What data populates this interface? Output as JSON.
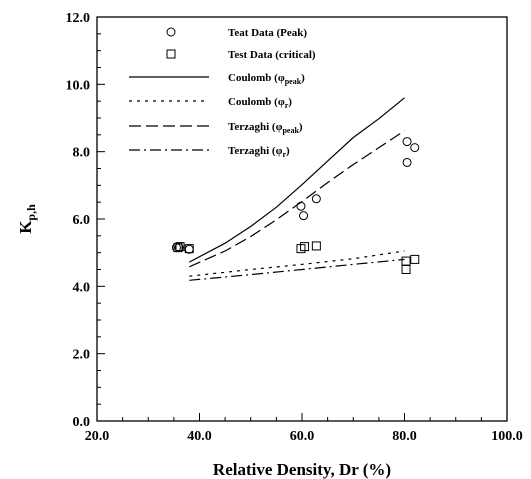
{
  "chart_data": {
    "type": "scatter",
    "xlabel": "Relative Density, Dr (%)",
    "ylabel_main": "K",
    "ylabel_sub": "p,h",
    "xlim": [
      20.0,
      100.0
    ],
    "ylim": [
      0.0,
      12.0
    ],
    "x_ticks": [
      "20.0",
      "40.0",
      "60.0",
      "80.0",
      "100.0"
    ],
    "y_ticks": [
      "0.0",
      "2.0",
      "4.0",
      "6.0",
      "8.0",
      "10.0",
      "12.0"
    ],
    "x_tick_values": [
      20,
      40,
      60,
      80,
      100
    ],
    "y_tick_values": [
      0,
      2,
      4,
      6,
      8,
      10,
      12
    ],
    "grid": false,
    "legend_position": "top-left",
    "series": [
      {
        "name": "Teat Data (Peak)",
        "kind": "points",
        "marker": "circle",
        "points": [
          [
            35.5,
            5.15
          ],
          [
            36.0,
            5.15
          ],
          [
            38.0,
            5.1
          ],
          [
            59.8,
            6.38
          ],
          [
            60.3,
            6.1
          ],
          [
            62.8,
            6.6
          ],
          [
            80.5,
            8.3
          ],
          [
            80.5,
            7.68
          ],
          [
            82.0,
            8.12
          ]
        ]
      },
      {
        "name": "Test Data (critical)",
        "kind": "points",
        "marker": "square",
        "points": [
          [
            35.8,
            5.15
          ],
          [
            36.2,
            5.18
          ],
          [
            38.0,
            5.12
          ],
          [
            59.8,
            5.12
          ],
          [
            60.5,
            5.18
          ],
          [
            62.8,
            5.2
          ],
          [
            80.3,
            4.75
          ],
          [
            80.3,
            4.5
          ],
          [
            82.0,
            4.8
          ]
        ]
      },
      {
        "name": "Coulomb",
        "name_sub": "φpeak",
        "kind": "line",
        "dash": "solid",
        "points": [
          [
            38,
            4.72
          ],
          [
            45,
            5.28
          ],
          [
            50,
            5.78
          ],
          [
            55,
            6.35
          ],
          [
            60,
            7.02
          ],
          [
            65,
            7.72
          ],
          [
            70,
            8.42
          ],
          [
            75,
            8.98
          ],
          [
            80,
            9.6
          ]
        ]
      },
      {
        "name": "Coulomb",
        "name_sub": "φr",
        "kind": "line",
        "dash": "dotted",
        "points": [
          [
            38,
            4.3
          ],
          [
            50,
            4.5
          ],
          [
            60,
            4.65
          ],
          [
            70,
            4.82
          ],
          [
            80,
            5.05
          ]
        ]
      },
      {
        "name": "Terzaghi",
        "name_sub": "φpeak",
        "kind": "line",
        "dash": "dashed",
        "points": [
          [
            38,
            4.58
          ],
          [
            45,
            5.05
          ],
          [
            50,
            5.48
          ],
          [
            55,
            5.98
          ],
          [
            60,
            6.52
          ],
          [
            65,
            7.08
          ],
          [
            70,
            7.62
          ],
          [
            75,
            8.12
          ],
          [
            80,
            8.62
          ]
        ]
      },
      {
        "name": "Terzaghi",
        "name_sub": "φr",
        "kind": "line",
        "dash": "dashdot",
        "points": [
          [
            38,
            4.18
          ],
          [
            50,
            4.35
          ],
          [
            60,
            4.5
          ],
          [
            70,
            4.65
          ],
          [
            80,
            4.8
          ]
        ]
      }
    ]
  }
}
